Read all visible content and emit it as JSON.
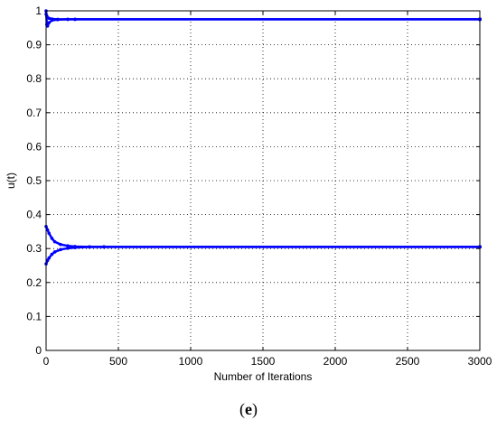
{
  "chart_data": {
    "type": "line",
    "title": "",
    "xlabel": "Number of Iterations",
    "ylabel": "u(t)",
    "xlim": [
      0,
      3000
    ],
    "ylim": [
      0,
      1
    ],
    "x_ticks": [
      0,
      500,
      1000,
      1500,
      2000,
      2500,
      3000
    ],
    "y_ticks": [
      0,
      0.1,
      0.2,
      0.3,
      0.4,
      0.5,
      0.6,
      0.7,
      0.8,
      0.9,
      1
    ],
    "grid": true,
    "line_color": "#0000ff",
    "series": [
      {
        "x": [
          0,
          5,
          10,
          20,
          40,
          80,
          150,
          200,
          3000
        ],
        "values": [
          1.0,
          0.96,
          0.955,
          0.965,
          0.972,
          0.974,
          0.975,
          0.975,
          0.975
        ]
      },
      {
        "x": [
          0,
          5,
          10,
          20,
          40,
          80,
          150,
          200,
          3000
        ],
        "values": [
          0.99,
          0.985,
          0.98,
          0.978,
          0.976,
          0.975,
          0.975,
          0.975,
          0.975
        ]
      },
      {
        "x": [
          0,
          10,
          20,
          40,
          60,
          100,
          150,
          200,
          300,
          400,
          3000
        ],
        "values": [
          0.365,
          0.355,
          0.345,
          0.33,
          0.32,
          0.312,
          0.308,
          0.306,
          0.305,
          0.305,
          0.305
        ]
      },
      {
        "x": [
          0,
          10,
          20,
          40,
          60,
          100,
          150,
          200,
          300,
          400,
          3000
        ],
        "values": [
          0.255,
          0.265,
          0.272,
          0.283,
          0.29,
          0.297,
          0.301,
          0.303,
          0.305,
          0.305,
          0.305
        ]
      }
    ],
    "caption": "(e)"
  }
}
